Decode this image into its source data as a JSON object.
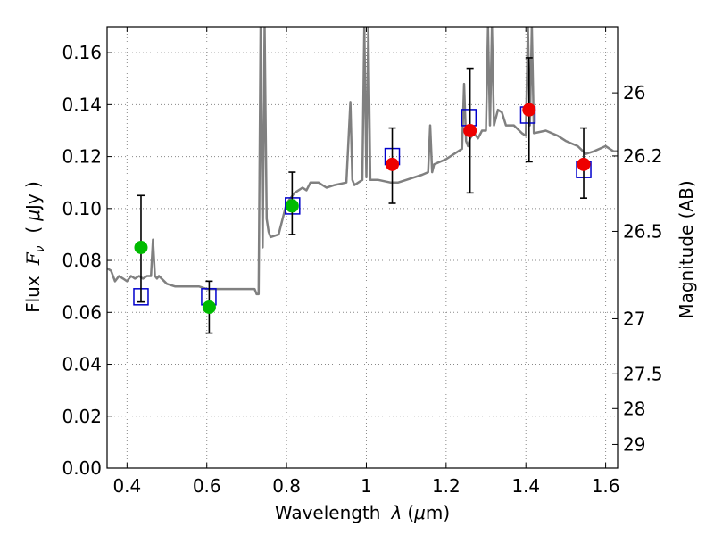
{
  "chart_data": {
    "type": "scatter",
    "xlabel_text": "Wavelength",
    "xlabel_symbol": "λ",
    "xlabel_unit_open": "(",
    "xlabel_unit_mu": "μ",
    "xlabel_unit_rest": "m)",
    "ylabel_text": "Flux",
    "ylabel_symbol_main": "F",
    "ylabel_symbol_sub": "ν",
    "ylabel_unit_open": "(",
    "ylabel_unit_mu": "μ",
    "ylabel_unit_rest": "Jy )",
    "y2label": "Magnitude (AB)",
    "xlim": [
      0.35,
      1.63
    ],
    "ylim": [
      0.0,
      0.17
    ],
    "grid": true,
    "x_ticks": [
      {
        "value": 0.4,
        "label": "0.4"
      },
      {
        "value": 0.6,
        "label": "0.6"
      },
      {
        "value": 0.8,
        "label": "0.8"
      },
      {
        "value": 1.0,
        "label": "1"
      },
      {
        "value": 1.2,
        "label": "1.2"
      },
      {
        "value": 1.4,
        "label": "1.4"
      },
      {
        "value": 1.6,
        "label": "1.6"
      }
    ],
    "y_ticks": [
      {
        "value": 0.0,
        "label": "0.00"
      },
      {
        "value": 0.02,
        "label": "0.02"
      },
      {
        "value": 0.04,
        "label": "0.04"
      },
      {
        "value": 0.06,
        "label": "0.06"
      },
      {
        "value": 0.08,
        "label": "0.08"
      },
      {
        "value": 0.1,
        "label": "0.10"
      },
      {
        "value": 0.12,
        "label": "0.12"
      },
      {
        "value": 0.14,
        "label": "0.14"
      },
      {
        "value": 0.16,
        "label": "0.16"
      }
    ],
    "y2_ticks": [
      {
        "mag": 26.0,
        "label": "26"
      },
      {
        "mag": 26.2,
        "label": "26.2"
      },
      {
        "mag": 26.5,
        "label": "26.5"
      },
      {
        "mag": 27.0,
        "label": "27"
      },
      {
        "mag": 27.5,
        "label": "27.5"
      },
      {
        "mag": 28.0,
        "label": "28"
      },
      {
        "mag": 29.0,
        "label": "29"
      }
    ],
    "colors": {
      "model": "#808080",
      "model_boxes": "#0000cc",
      "green_points": "#00bb00",
      "red_points": "#ee0000",
      "errorbars": "#000000",
      "grid": "#888888"
    },
    "model_spectrum": {
      "x": [
        0.35,
        0.36,
        0.37,
        0.38,
        0.39,
        0.4,
        0.41,
        0.42,
        0.43,
        0.44,
        0.45,
        0.46,
        0.465,
        0.47,
        0.475,
        0.48,
        0.5,
        0.52,
        0.55,
        0.58,
        0.6,
        0.62,
        0.65,
        0.68,
        0.7,
        0.72,
        0.725,
        0.73,
        0.735,
        0.74,
        0.745,
        0.75,
        0.755,
        0.76,
        0.78,
        0.8,
        0.82,
        0.84,
        0.85,
        0.86,
        0.88,
        0.9,
        0.92,
        0.95,
        0.96,
        0.965,
        0.97,
        0.98,
        0.99,
        0.995,
        1.0,
        1.005,
        1.01,
        1.03,
        1.06,
        1.08,
        1.1,
        1.14,
        1.155,
        1.16,
        1.165,
        1.17,
        1.2,
        1.22,
        1.24,
        1.245,
        1.25,
        1.255,
        1.26,
        1.27,
        1.28,
        1.29,
        1.3,
        1.305,
        1.31,
        1.315,
        1.32,
        1.33,
        1.34,
        1.35,
        1.37,
        1.39,
        1.4,
        1.405,
        1.41,
        1.415,
        1.42,
        1.45,
        1.48,
        1.5,
        1.53,
        1.55,
        1.57,
        1.6,
        1.62,
        1.63
      ],
      "y": [
        0.077,
        0.076,
        0.072,
        0.074,
        0.073,
        0.072,
        0.074,
        0.073,
        0.074,
        0.073,
        0.074,
        0.074,
        0.088,
        0.074,
        0.073,
        0.074,
        0.071,
        0.07,
        0.07,
        0.07,
        0.069,
        0.069,
        0.069,
        0.069,
        0.069,
        0.069,
        0.067,
        0.067,
        0.17,
        0.085,
        0.17,
        0.096,
        0.091,
        0.089,
        0.09,
        0.102,
        0.106,
        0.108,
        0.107,
        0.11,
        0.11,
        0.108,
        0.109,
        0.11,
        0.141,
        0.111,
        0.109,
        0.11,
        0.111,
        0.17,
        0.112,
        0.17,
        0.111,
        0.111,
        0.11,
        0.11,
        0.111,
        0.113,
        0.114,
        0.132,
        0.114,
        0.117,
        0.119,
        0.121,
        0.123,
        0.148,
        0.126,
        0.124,
        0.127,
        0.129,
        0.127,
        0.13,
        0.13,
        0.17,
        0.132,
        0.17,
        0.132,
        0.138,
        0.137,
        0.132,
        0.132,
        0.129,
        0.128,
        0.17,
        0.132,
        0.17,
        0.129,
        0.13,
        0.128,
        0.126,
        0.124,
        0.121,
        0.122,
        0.124,
        0.122,
        0.122
      ]
    },
    "model_boxes": [
      {
        "x": 0.435,
        "y": 0.066
      },
      {
        "x": 0.605,
        "y": 0.066
      },
      {
        "x": 0.815,
        "y": 0.101
      },
      {
        "x": 1.065,
        "y": 0.12
      },
      {
        "x": 1.257,
        "y": 0.135
      },
      {
        "x": 1.405,
        "y": 0.136
      },
      {
        "x": 1.545,
        "y": 0.115
      }
    ],
    "green_points": [
      {
        "x": 0.435,
        "y": 0.085,
        "ylow": 0.064,
        "yhigh": 0.105
      },
      {
        "x": 0.606,
        "y": 0.062,
        "ylow": 0.052,
        "yhigh": 0.072
      },
      {
        "x": 0.814,
        "y": 0.101,
        "ylow": 0.09,
        "yhigh": 0.114
      }
    ],
    "red_points": [
      {
        "x": 1.065,
        "y": 0.117,
        "ylow": 0.102,
        "yhigh": 0.131
      },
      {
        "x": 1.26,
        "y": 0.13,
        "ylow": 0.106,
        "yhigh": 0.154
      },
      {
        "x": 1.408,
        "y": 0.138,
        "ylow": 0.118,
        "yhigh": 0.158
      },
      {
        "x": 1.545,
        "y": 0.117,
        "ylow": 0.104,
        "yhigh": 0.131
      }
    ]
  }
}
